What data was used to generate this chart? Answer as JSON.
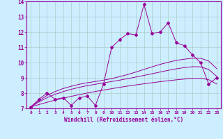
{
  "xlabel": "Windchill (Refroidissement éolien,°C)",
  "background_color": "#cceeff",
  "grid_color": "#aacccc",
  "line_color": "#990099",
  "x_data": [
    0,
    1,
    2,
    3,
    4,
    5,
    6,
    7,
    8,
    9,
    10,
    11,
    12,
    13,
    14,
    15,
    16,
    17,
    18,
    19,
    20,
    21,
    22,
    23
  ],
  "y_main": [
    7.1,
    7.6,
    8.0,
    7.6,
    7.7,
    7.2,
    7.7,
    7.8,
    7.2,
    8.6,
    11.0,
    11.5,
    11.9,
    11.8,
    13.8,
    11.9,
    12.0,
    12.6,
    11.3,
    11.1,
    10.5,
    10.0,
    8.6,
    9.0
  ],
  "y_curve1": [
    7.1,
    7.5,
    7.85,
    8.1,
    8.3,
    8.45,
    8.58,
    8.68,
    8.76,
    8.85,
    8.95,
    9.08,
    9.22,
    9.38,
    9.55,
    9.72,
    9.88,
    10.02,
    10.14,
    10.22,
    10.28,
    10.28,
    10.1,
    9.6
  ],
  "y_curve2": [
    7.1,
    7.42,
    7.7,
    7.92,
    8.1,
    8.25,
    8.38,
    8.49,
    8.58,
    8.67,
    8.76,
    8.85,
    8.95,
    9.05,
    9.16,
    9.27,
    9.38,
    9.49,
    9.59,
    9.67,
    9.73,
    9.72,
    9.55,
    9.1
  ],
  "y_linear": [
    7.1,
    7.25,
    7.4,
    7.54,
    7.67,
    7.79,
    7.9,
    8.01,
    8.11,
    8.2,
    8.29,
    8.38,
    8.46,
    8.54,
    8.61,
    8.68,
    8.75,
    8.81,
    8.87,
    8.92,
    8.97,
    8.97,
    8.88,
    8.6
  ],
  "ylim": [
    7,
    14
  ],
  "xlim_min": -0.5,
  "xlim_max": 23.5,
  "yticks": [
    7,
    8,
    9,
    10,
    11,
    12,
    13,
    14
  ],
  "xticks": [
    0,
    1,
    2,
    3,
    4,
    5,
    6,
    7,
    8,
    9,
    10,
    11,
    12,
    13,
    14,
    15,
    16,
    17,
    18,
    19,
    20,
    21,
    22,
    23
  ]
}
